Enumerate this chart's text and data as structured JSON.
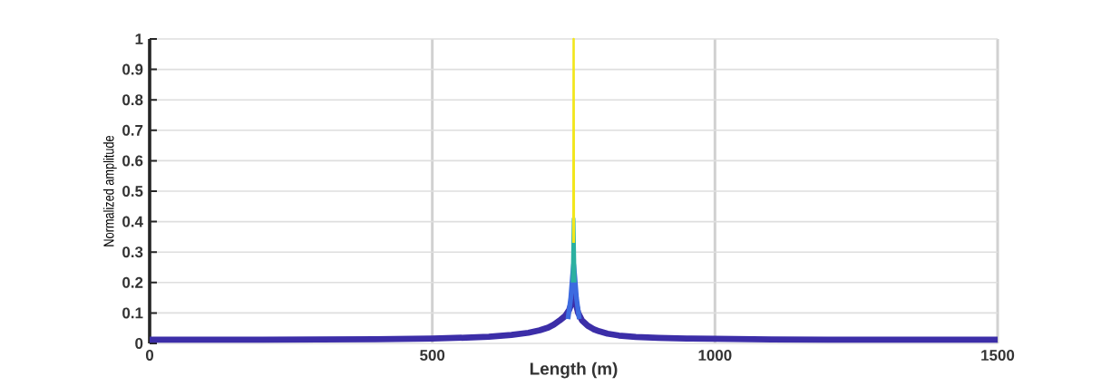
{
  "chart_data": {
    "type": "line",
    "xlabel": "Length (m)",
    "ylabel": "Normalized amplitude",
    "xlim": [
      0,
      1500
    ],
    "ylim": [
      0,
      1
    ],
    "xticks": [
      0,
      500,
      1000,
      1500
    ],
    "yticks": [
      0,
      0.1,
      0.2,
      0.3,
      0.4,
      0.5,
      0.6,
      0.7,
      0.8,
      0.9,
      1
    ],
    "grid": true,
    "series": [
      {
        "color": "#3c2ea8",
        "x": [
          0,
          100,
          200,
          300,
          400,
          500,
          560,
          600,
          640,
          670,
          690,
          705,
          715,
          725,
          735,
          742,
          746,
          748,
          750,
          752,
          754,
          758,
          765,
          775,
          785,
          795,
          810,
          830,
          860,
          900,
          950,
          1000,
          1100,
          1200,
          1300,
          1400,
          1500
        ],
        "values": [
          0.012,
          0.012,
          0.012,
          0.013,
          0.014,
          0.016,
          0.019,
          0.022,
          0.028,
          0.035,
          0.043,
          0.052,
          0.062,
          0.075,
          0.09,
          0.11,
          0.13,
          0.16,
          0.18,
          0.16,
          0.13,
          0.1,
          0.075,
          0.058,
          0.047,
          0.04,
          0.032,
          0.026,
          0.021,
          0.018,
          0.016,
          0.015,
          0.013,
          0.012,
          0.012,
          0.012,
          0.012
        ]
      },
      {
        "color": "#3d6be0",
        "x": [
          740,
          745,
          748,
          750,
          752,
          755,
          760
        ],
        "values": [
          0.08,
          0.15,
          0.22,
          0.26,
          0.22,
          0.15,
          0.08
        ]
      },
      {
        "color": "#2bb0a0",
        "x": [
          748,
          750,
          752
        ],
        "values": [
          0.2,
          0.41,
          0.2
        ]
      },
      {
        "color": "#f2e61c",
        "x": [
          749.5,
          750,
          750.5
        ],
        "values": [
          0.33,
          1,
          0.33
        ]
      }
    ]
  }
}
